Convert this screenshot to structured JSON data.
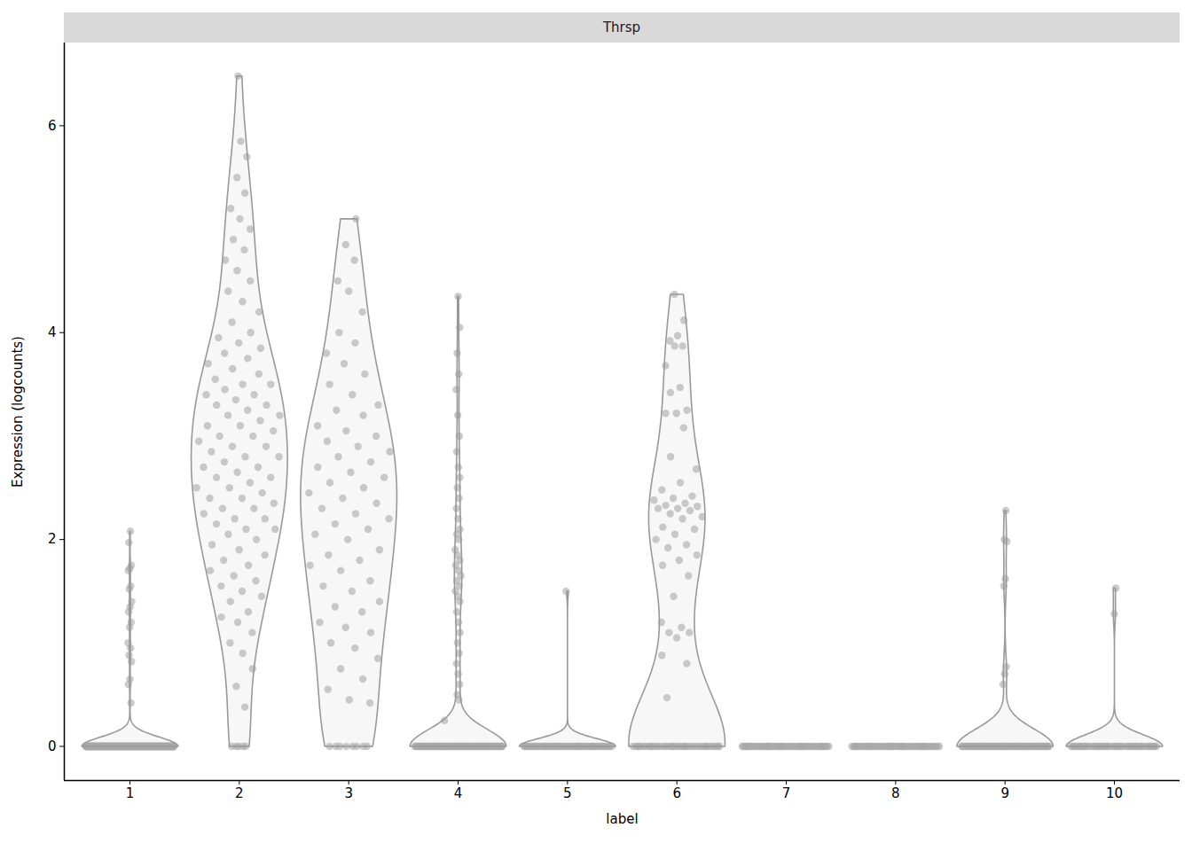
{
  "chart_data": {
    "type": "violin",
    "title": "Thrsp",
    "x_label": "label",
    "y_label": "Expression (logcounts)",
    "categories": [
      "1",
      "2",
      "3",
      "4",
      "5",
      "6",
      "7",
      "8",
      "9",
      "10"
    ],
    "color": "#a8a8a8",
    "groups": [
      {
        "values": [
          2.08,
          1.97,
          1.75,
          1.72,
          1.7,
          1.55,
          1.52,
          1.4,
          1.35,
          1.3,
          1.2,
          1.15,
          1.0,
          0.95,
          0.88,
          0.82,
          0.65,
          0.6,
          0.42
        ],
        "zero_count": 300
      },
      {
        "values": [
          0.38,
          0.58,
          0.75,
          0.9,
          1.0,
          1.1,
          1.2,
          1.25,
          1.3,
          1.4,
          1.45,
          1.5,
          1.55,
          1.6,
          1.65,
          1.7,
          1.75,
          1.8,
          1.85,
          1.9,
          1.95,
          2.0,
          2.05,
          2.1,
          2.1,
          2.15,
          2.2,
          2.2,
          2.25,
          2.3,
          2.3,
          2.35,
          2.4,
          2.4,
          2.45,
          2.5,
          2.5,
          2.55,
          2.6,
          2.6,
          2.65,
          2.7,
          2.7,
          2.75,
          2.8,
          2.8,
          2.85,
          2.9,
          2.9,
          2.95,
          3.0,
          3.0,
          3.05,
          3.1,
          3.1,
          3.15,
          3.2,
          3.2,
          3.25,
          3.3,
          3.3,
          3.35,
          3.4,
          3.4,
          3.45,
          3.5,
          3.5,
          3.55,
          3.6,
          3.65,
          3.7,
          3.75,
          3.8,
          3.85,
          3.9,
          3.95,
          4.0,
          4.1,
          4.2,
          4.3,
          4.4,
          4.5,
          4.6,
          4.7,
          4.8,
          4.9,
          5.0,
          5.1,
          5.2,
          5.35,
          5.5,
          5.7,
          5.85,
          6.48
        ],
        "zero_count": 5
      },
      {
        "values": [
          0.42,
          0.45,
          0.55,
          0.65,
          0.75,
          0.85,
          0.95,
          1.0,
          1.1,
          1.15,
          1.2,
          1.3,
          1.35,
          1.4,
          1.5,
          1.55,
          1.6,
          1.7,
          1.75,
          1.8,
          1.85,
          1.9,
          2.0,
          2.05,
          2.1,
          2.15,
          2.2,
          2.25,
          2.3,
          2.35,
          2.4,
          2.45,
          2.5,
          2.55,
          2.6,
          2.65,
          2.7,
          2.75,
          2.8,
          2.85,
          2.9,
          2.95,
          3.0,
          3.05,
          3.1,
          3.2,
          3.25,
          3.3,
          3.4,
          3.5,
          3.6,
          3.7,
          3.8,
          3.9,
          4.0,
          4.2,
          4.4,
          4.5,
          4.7,
          4.85,
          5.1
        ],
        "zero_count": 8
      },
      {
        "values": [
          0.25,
          0.45,
          0.5,
          0.6,
          0.7,
          0.8,
          0.9,
          1.0,
          1.1,
          1.2,
          1.3,
          1.4,
          1.45,
          1.5,
          1.55,
          1.6,
          1.65,
          1.7,
          1.75,
          1.8,
          1.85,
          1.9,
          2.0,
          2.05,
          2.1,
          2.2,
          2.3,
          2.4,
          2.5,
          2.6,
          2.7,
          2.85,
          3.0,
          3.2,
          3.45,
          3.6,
          3.8,
          4.05,
          4.35
        ],
        "zero_count": 100
      },
      {
        "values": [
          1.5
        ],
        "zero_count": 60
      },
      {
        "values": [
          4.37,
          4.12,
          3.97,
          3.92,
          3.87,
          3.87,
          3.68,
          3.47,
          3.42,
          3.25,
          3.22,
          3.22,
          3.08,
          2.8,
          2.68,
          2.55,
          2.48,
          2.42,
          2.4,
          2.38,
          2.35,
          2.33,
          2.32,
          2.3,
          2.3,
          2.28,
          2.25,
          2.22,
          2.2,
          2.12,
          2.1,
          2.05,
          2.0,
          1.95,
          1.92,
          1.85,
          1.8,
          1.75,
          1.65,
          1.45,
          1.2,
          1.15,
          1.1,
          1.1,
          1.05,
          0.88,
          0.8,
          0.47
        ],
        "zero_count": 40
      },
      {
        "values": [],
        "zero_count": 60
      },
      {
        "values": [],
        "zero_count": 60
      },
      {
        "values": [
          2.28,
          2.0,
          1.98,
          1.62,
          1.55,
          0.77,
          0.7,
          0.6
        ],
        "zero_count": 80
      },
      {
        "values": [
          1.53,
          1.28
        ],
        "zero_count": 50
      }
    ],
    "ylim": [
      -0.33,
      6.8
    ],
    "yticks": [
      0,
      2,
      4,
      6
    ]
  }
}
